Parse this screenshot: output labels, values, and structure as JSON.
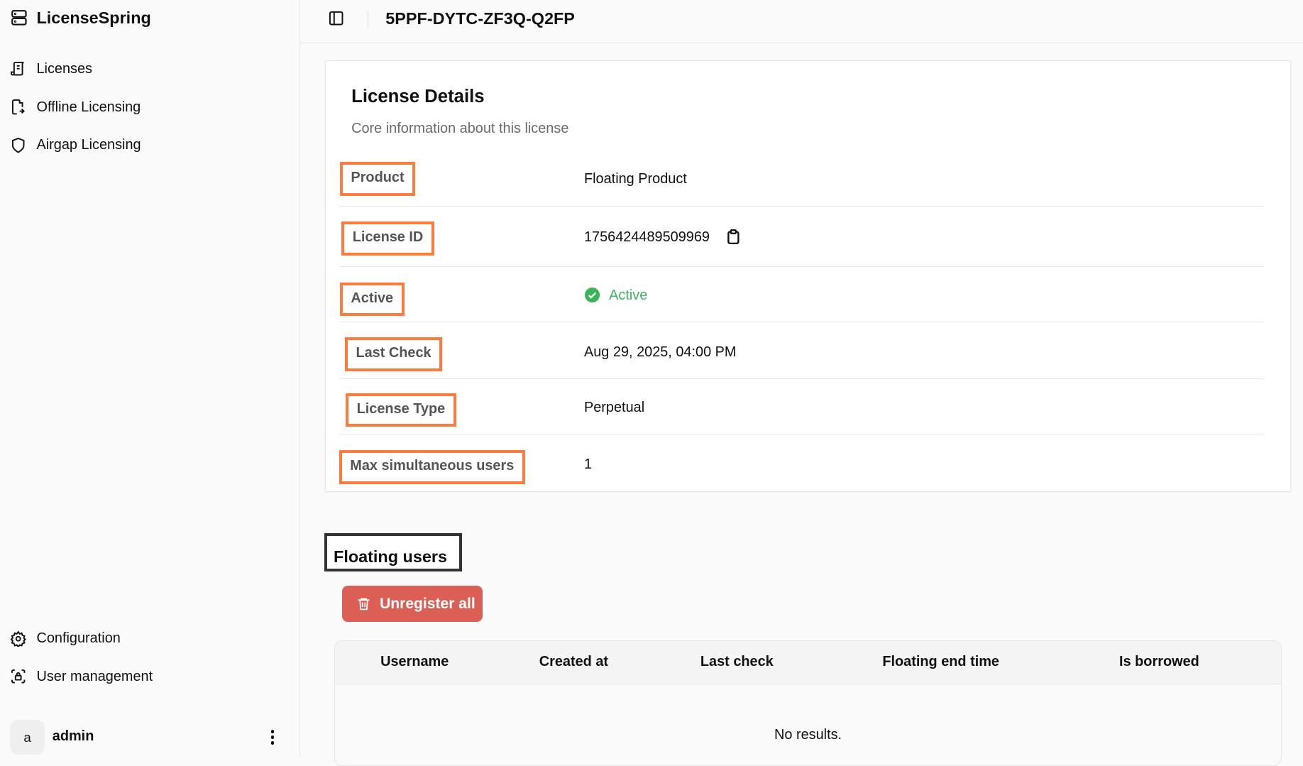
{
  "sidebar": {
    "brand": "LicenseSpring",
    "items": [
      {
        "label": "Licenses",
        "icon": "scroll-icon"
      },
      {
        "label": "Offline Licensing",
        "icon": "file-arrow-icon"
      },
      {
        "label": "Airgap Licensing",
        "icon": "shield-icon"
      }
    ],
    "bottom_items": [
      {
        "label": "Configuration",
        "icon": "gear-icon"
      },
      {
        "label": "User management",
        "icon": "user-scan-icon"
      }
    ],
    "user": {
      "avatar_letter": "a",
      "name": "admin"
    }
  },
  "header": {
    "title": "5PPF-DYTC-ZF3Q-Q2FP"
  },
  "details": {
    "title": "License Details",
    "subtitle": "Core information about this license",
    "rows": [
      {
        "label": "Product",
        "value": "Floating Product"
      },
      {
        "label": "License ID",
        "value": "1756424489509969"
      },
      {
        "label": "Active",
        "value": "Active"
      },
      {
        "label": "Last Check",
        "value": "Aug 29, 2025, 04:00 PM"
      },
      {
        "label": "License Type",
        "value": "Perpetual"
      },
      {
        "label": "Max simultaneous users",
        "value": "1"
      }
    ]
  },
  "floating": {
    "title": "Floating users",
    "unregister_label": "Unregister all",
    "columns": [
      "Username",
      "Created at",
      "Last check",
      "Floating end time",
      "Is borrowed"
    ],
    "empty_text": "No results."
  },
  "colors": {
    "highlight": "#ff7a3d",
    "danger": "#dc5f55",
    "success": "#3cb55a"
  }
}
